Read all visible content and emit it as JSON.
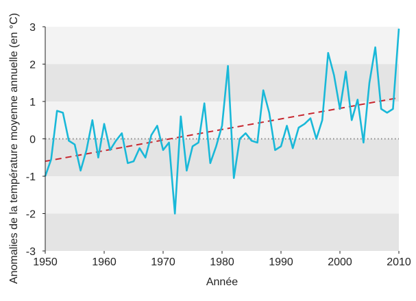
{
  "chart_data": {
    "type": "line",
    "title": "",
    "xlabel": "Année",
    "ylabel": "Anomalies de la température moyenne annuelle (en °C)",
    "xlim": [
      1950,
      2010
    ],
    "ylim": [
      -3,
      3
    ],
    "xticks": [
      1950,
      1960,
      1970,
      1980,
      1990,
      2000,
      2010
    ],
    "yticks": [
      3,
      2,
      1,
      0,
      -1,
      -2,
      -3
    ],
    "grid": "alternating horizontal bands",
    "zero_line": "dotted",
    "colors": {
      "series": "#19b8d8",
      "trend": "#c8262e",
      "band_dark": "#e4e4e4",
      "band_light": "#f3f3f3",
      "zero_line": "#888888"
    },
    "series": [
      {
        "x": [
          1950,
          1951,
          1952,
          1953,
          1954,
          1955,
          1956,
          1957,
          1958,
          1959,
          1960,
          1961,
          1962,
          1963,
          1964,
          1965,
          1966,
          1967,
          1968,
          1969,
          1970,
          1971,
          1972,
          1973,
          1974,
          1975,
          1976,
          1977,
          1978,
          1979,
          1980,
          1981,
          1982,
          1983,
          1984,
          1985,
          1986,
          1987,
          1988,
          1989,
          1990,
          1991,
          1992,
          1993,
          1994,
          1995,
          1996,
          1997,
          1998,
          1999,
          2000,
          2001,
          2002,
          2003,
          2004,
          2005,
          2006,
          2007,
          2008,
          2009,
          2010
        ],
        "values": [
          -1.0,
          -0.55,
          0.75,
          0.7,
          -0.05,
          -0.15,
          -0.85,
          -0.3,
          0.5,
          -0.5,
          0.4,
          -0.3,
          -0.05,
          0.15,
          -0.65,
          -0.6,
          -0.25,
          -0.5,
          0.1,
          0.35,
          -0.3,
          -0.1,
          -2.0,
          0.6,
          -0.85,
          -0.2,
          -0.1,
          0.95,
          -0.65,
          -0.2,
          0.35,
          1.95,
          -1.05,
          0.0,
          0.15,
          -0.05,
          -0.1,
          1.3,
          0.7,
          -0.3,
          -0.2,
          0.35,
          -0.25,
          0.3,
          0.4,
          0.55,
          0.0,
          0.5,
          2.3,
          1.7,
          0.8,
          1.8,
          0.5,
          1.05,
          -0.1,
          1.5,
          2.45,
          0.8,
          0.7,
          0.8,
          2.95
        ]
      },
      {
        "x": [
          1950,
          2010
        ],
        "values": [
          -0.6,
          1.1
        ]
      }
    ]
  }
}
